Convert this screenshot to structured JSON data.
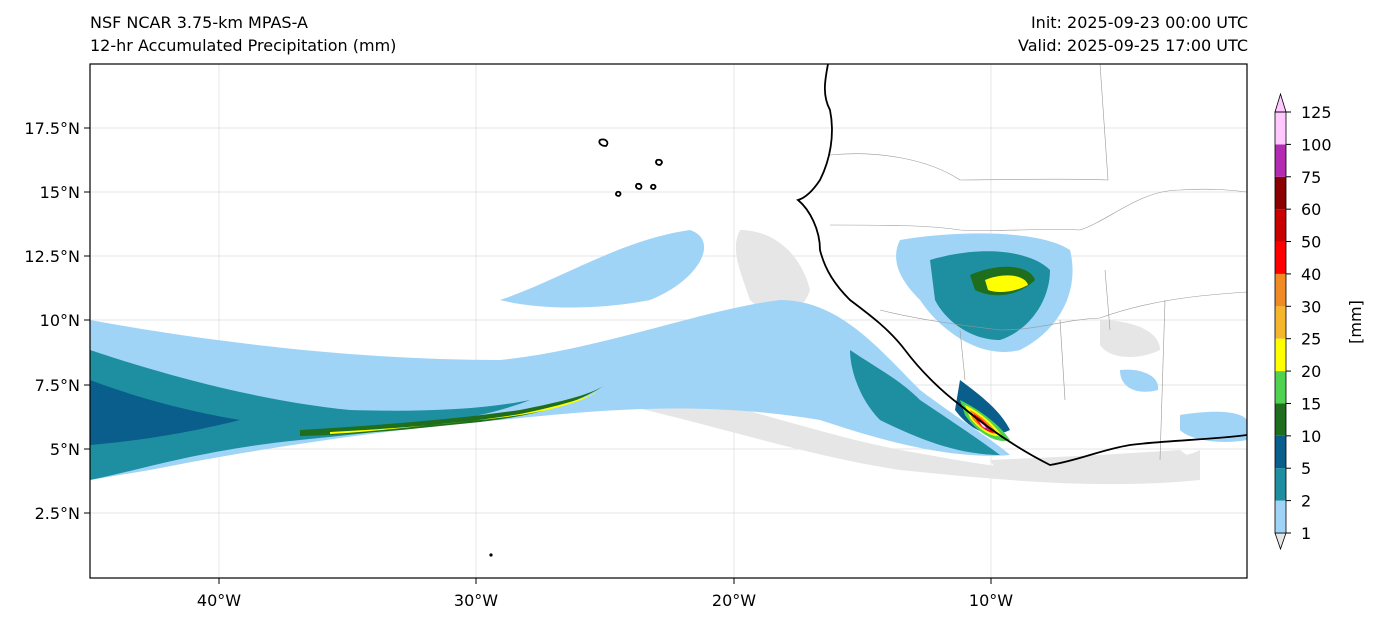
{
  "header": {
    "model": "NSF NCAR 3.75-km MPAS-A",
    "field": "12-hr Accumulated Precipitation (mm)",
    "init": "Init: 2025-09-23 00:00 UTC",
    "valid": "Valid: 2025-09-25 17:00 UTC"
  },
  "map": {
    "lon_labels": [
      "40°W",
      "30°W",
      "20°W",
      "10°W"
    ],
    "lat_labels": [
      "17.5°N",
      "15°N",
      "12.5°N",
      "10°N",
      "7.5°N",
      "5°N",
      "2.5°N"
    ],
    "gridlines": true
  },
  "colorbar": {
    "unit_label": "[mm]",
    "levels": [
      "1",
      "2",
      "5",
      "10",
      "15",
      "20",
      "25",
      "30",
      "40",
      "50",
      "60",
      "75",
      "100",
      "125"
    ],
    "colors": [
      "#e6e6e6",
      "#9fd4f7",
      "#1e8fa0",
      "#0a5e8c",
      "#1e6e1e",
      "#4fd24f",
      "#ffff00",
      "#f5b62c",
      "#f08a24",
      "#ff0000",
      "#c80000",
      "#8b0000",
      "#b22bb2",
      "#ffc8ff"
    ]
  },
  "colors": {
    "land_outline": "#000000",
    "border": "#999999",
    "grid": "#dddddd"
  }
}
